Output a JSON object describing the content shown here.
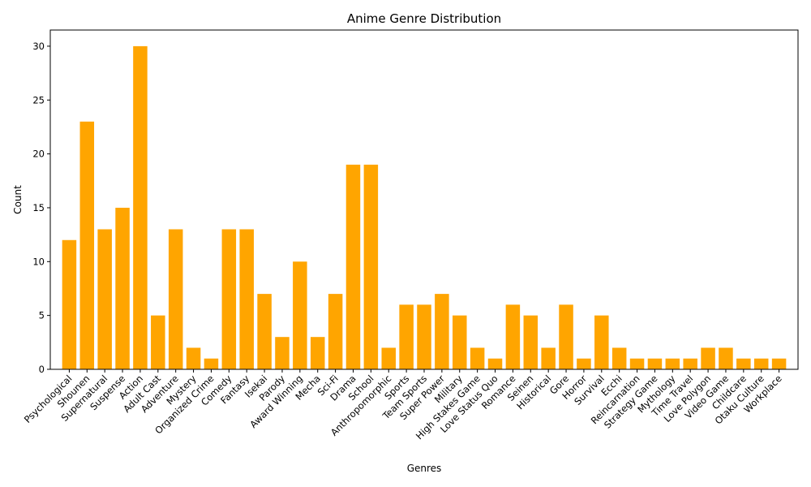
{
  "chart_data": {
    "type": "bar",
    "title": "Anime Genre Distribution",
    "xlabel": "Genres",
    "ylabel": "Count",
    "ylim": [
      0,
      31.5
    ],
    "yticks": [
      0,
      5,
      10,
      15,
      20,
      25,
      30
    ],
    "bar_color": "#ffa500",
    "categories": [
      "Psychological",
      "Shounen",
      "Supernatural",
      "Suspense",
      "Action",
      "Adult Cast",
      "Adventure",
      "Mystery",
      "Organized Crime",
      "Comedy",
      "Fantasy",
      "Isekai",
      "Parody",
      "Award Winning",
      "Mecha",
      "Sci-Fi",
      "Drama",
      "School",
      "Anthropomorphic",
      "Sports",
      "Team Sports",
      "Super Power",
      "Military",
      "High Stakes Game",
      "Love Status Quo",
      "Romance",
      "Seinen",
      "Historical",
      "Gore",
      "Horror",
      "Survival",
      "Ecchi",
      "Reincarnation",
      "Strategy Game",
      "Mythology",
      "Time Travel",
      "Love Polygon",
      "Video Game",
      "Childcare",
      "Otaku Culture",
      "Workplace"
    ],
    "values": [
      12,
      23,
      13,
      15,
      30,
      5,
      13,
      2,
      1,
      13,
      13,
      7,
      3,
      10,
      3,
      7,
      19,
      19,
      2,
      6,
      6,
      7,
      5,
      2,
      1,
      6,
      5,
      2,
      6,
      1,
      5,
      2,
      1,
      1,
      1,
      1,
      2,
      2,
      1,
      1,
      1
    ]
  }
}
